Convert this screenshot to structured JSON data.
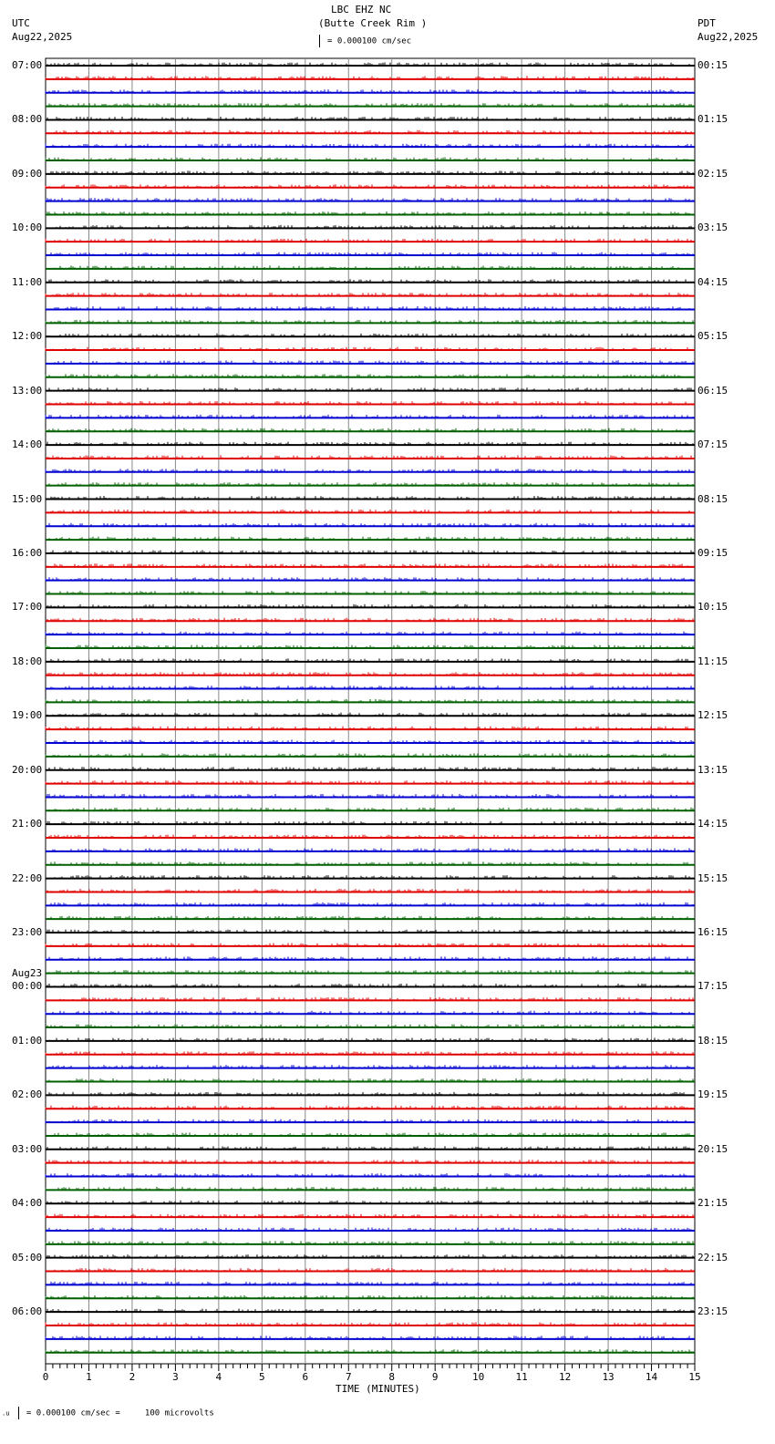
{
  "header": {
    "station": "LBC EHZ NC",
    "location": "(Butte Creek Rim )",
    "scale": "= 0.000100 cm/sec",
    "left_tz": "UTC",
    "left_date": "Aug22,2025",
    "right_tz": "PDT",
    "right_date": "Aug22,2025"
  },
  "footer": {
    "scale_note": "= 0.000100 cm/sec =     100 microvolts"
  },
  "chart_data": {
    "type": "line",
    "title": "LBC EHZ NC (Butte Creek Rim )",
    "xlabel": "TIME (MINUTES)",
    "xlim": [
      0,
      15
    ],
    "x_ticks": [
      "0",
      "1",
      "2",
      "3",
      "4",
      "5",
      "6",
      "7",
      "8",
      "9",
      "10",
      "11",
      "12",
      "13",
      "14",
      "15"
    ],
    "rows": 96,
    "row_minutes": 15,
    "trace_colors": [
      "#000000",
      "#e00000",
      "#0000d0",
      "#006000"
    ],
    "left_labels": [
      "07:00",
      "08:00",
      "09:00",
      "10:00",
      "11:00",
      "12:00",
      "13:00",
      "14:00",
      "15:00",
      "16:00",
      "17:00",
      "18:00",
      "19:00",
      "20:00",
      "21:00",
      "22:00",
      "23:00",
      "00:00",
      "01:00",
      "02:00",
      "03:00",
      "04:00",
      "05:00",
      "06:00"
    ],
    "date_change_label": "Aug23",
    "right_labels": [
      "00:15",
      "01:15",
      "02:15",
      "03:15",
      "04:15",
      "05:15",
      "06:15",
      "07:15",
      "08:15",
      "09:15",
      "10:15",
      "11:15",
      "12:15",
      "13:15",
      "14:15",
      "15:15",
      "16:15",
      "17:15",
      "18:15",
      "19:15",
      "20:15",
      "21:15",
      "22:15",
      "23:15"
    ]
  }
}
